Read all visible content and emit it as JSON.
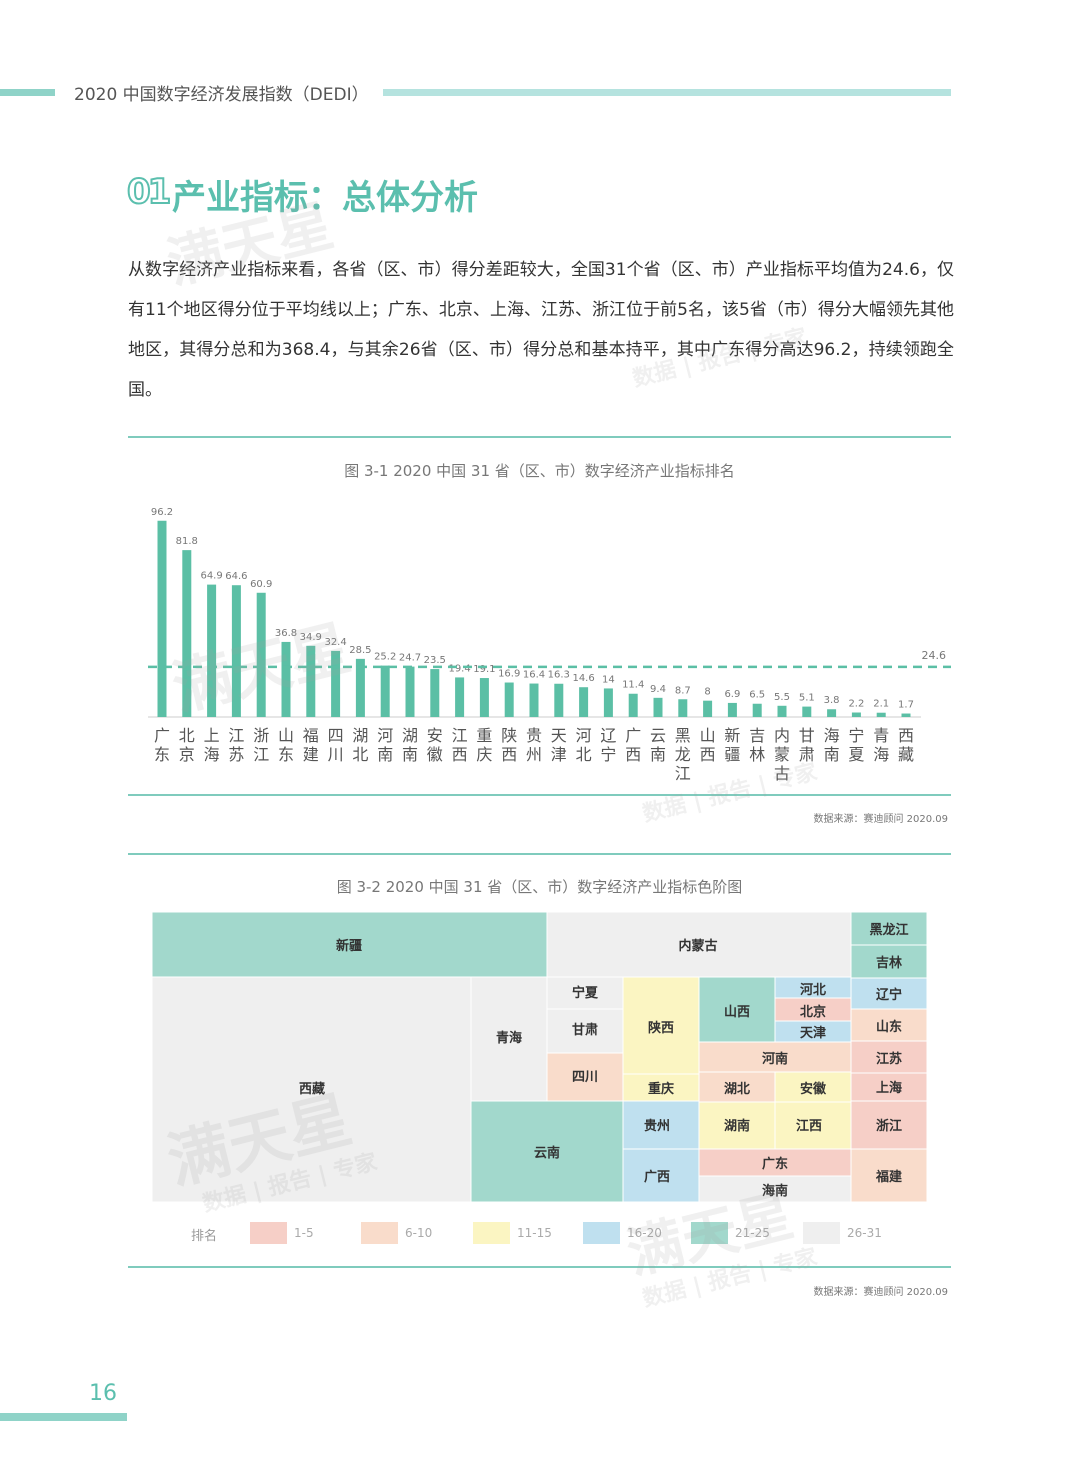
{
  "header": {
    "title": "2020 中国数字经济发展指数（DEDI）"
  },
  "section": {
    "number": "01",
    "title": "产业指标：总体分析"
  },
  "intro": "从数字经济产业指标来看，各省（区、市）得分差距较大，全国31个省（区、市）产业指标平均值为24.6，仅有11个地区得分位于平均线以上；广东、北京、上海、江苏、浙江位于前5名，该5省（市）得分大幅领先其他地区，其得分总和为368.4，与其余26省（区、市）得分总和基本持平，其中广东得分高达96.2，持续领跑全国。",
  "figure1": {
    "title": "图 3-1 2020 中国 31 省（区、市）数字经济产业指标排名",
    "source": "数据来源：赛迪顾问 2020.09"
  },
  "figure2": {
    "title": "图 3-2 2020 中国 31 省（区、市）数字经济产业指标色阶图",
    "source": "数据来源：赛迪顾问 2020.09"
  },
  "chart_data": {
    "type": "bar",
    "categories": [
      "广东",
      "北京",
      "上海",
      "江苏",
      "浙江",
      "山东",
      "福建",
      "四川",
      "湖北",
      "河南",
      "湖南",
      "安徽",
      "江西",
      "重庆",
      "陕西",
      "贵州",
      "天津",
      "河北",
      "辽宁",
      "广西",
      "云南",
      "黑龙江",
      "山西",
      "新疆",
      "吉林",
      "内蒙古",
      "甘肃",
      "海南",
      "宁夏",
      "青海",
      "西藏"
    ],
    "values": [
      96.2,
      81.8,
      64.9,
      64.6,
      60.9,
      36.8,
      34.9,
      32.4,
      28.5,
      25.2,
      24.7,
      23.5,
      19.4,
      19.1,
      16.9,
      16.4,
      16.3,
      14.6,
      14.0,
      11.4,
      9.4,
      8.7,
      8.0,
      6.9,
      6.5,
      5.5,
      5.1,
      3.8,
      2.2,
      2.1,
      1.7
    ],
    "average_line": 24.6,
    "average_label": "24.6",
    "color": "#5bbfa5",
    "ylim": [
      0,
      100
    ]
  },
  "map": {
    "colors": {
      "1-5": "#f6cfc7",
      "6-10": "#f9dccb",
      "11-15": "#fbf5c2",
      "16-20": "#bfe0ef",
      "21-25": "#a2d8cc",
      "26-31": "#efefef"
    },
    "regions": [
      {
        "name": "新疆",
        "rank": "21-25"
      },
      {
        "name": "内蒙古",
        "rank": "26-31"
      },
      {
        "name": "黑龙江",
        "rank": "21-25"
      },
      {
        "name": "吉林",
        "rank": "21-25"
      },
      {
        "name": "辽宁",
        "rank": "16-20"
      },
      {
        "name": "山东",
        "rank": "6-10"
      },
      {
        "name": "江苏",
        "rank": "1-5"
      },
      {
        "name": "上海",
        "rank": "1-5"
      },
      {
        "name": "浙江",
        "rank": "1-5"
      },
      {
        "name": "福建",
        "rank": "6-10"
      },
      {
        "name": "西藏",
        "rank": "26-31"
      },
      {
        "name": "青海",
        "rank": "26-31"
      },
      {
        "name": "宁夏",
        "rank": "26-31"
      },
      {
        "name": "甘肃",
        "rank": "26-31"
      },
      {
        "name": "四川",
        "rank": "6-10"
      },
      {
        "name": "陕西",
        "rank": "11-15"
      },
      {
        "name": "重庆",
        "rank": "11-15"
      },
      {
        "name": "山西",
        "rank": "21-25"
      },
      {
        "name": "河北",
        "rank": "16-20"
      },
      {
        "name": "北京",
        "rank": "1-5"
      },
      {
        "name": "天津",
        "rank": "16-20"
      },
      {
        "name": "河南",
        "rank": "6-10"
      },
      {
        "name": "湖北",
        "rank": "6-10"
      },
      {
        "name": "安徽",
        "rank": "11-15"
      },
      {
        "name": "湖南",
        "rank": "11-15"
      },
      {
        "name": "江西",
        "rank": "11-15"
      },
      {
        "name": "贵州",
        "rank": "16-20"
      },
      {
        "name": "广西",
        "rank": "16-20"
      },
      {
        "name": "广东",
        "rank": "1-5"
      },
      {
        "name": "海南",
        "rank": "26-31"
      },
      {
        "name": "云南",
        "rank": "21-25"
      }
    ]
  },
  "legend": {
    "title": "排名",
    "items": [
      "1-5",
      "6-10",
      "11-15",
      "16-20",
      "21-25",
      "26-31"
    ]
  },
  "watermark": {
    "main": "满天星",
    "sub": "数据 | 报告 | 专家"
  },
  "page_number": "16"
}
